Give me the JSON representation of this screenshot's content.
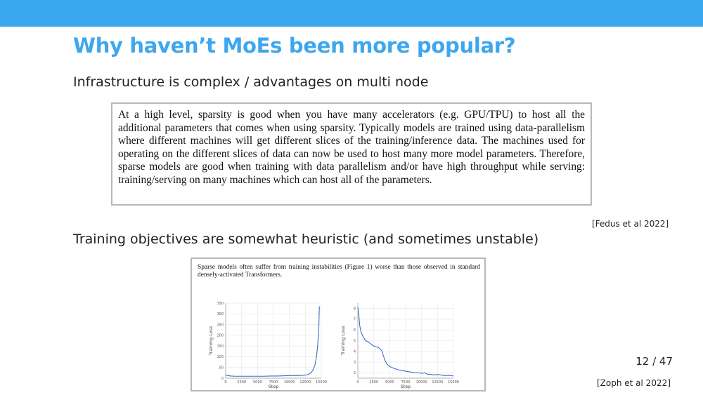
{
  "slide": {
    "title": "Why haven’t MoEs been more popular?",
    "section1_heading": "Infrastructure is complex / advantages on multi node",
    "quote1": "At a high level, sparsity is good when you have many accelerators (e.g.  GPU/TPU) to host all the additional parameters that comes when using sparsity. Typically models are trained using data-parallelism where different machines will get different slices of the training/inference data.  The machines used for operating on the different slices of data can now be used to host many more model parameters.  Therefore, sparse models are good when training with data parallelism and/or have high throughput while serving: training/serving on many machines which can host all of the parameters.",
    "citation1": "[Fedus et al 2022]",
    "section2_heading": "Training objectives are somewhat heuristic (and sometimes unstable)",
    "figure_caption": "Sparse models often suffer from training instabilities (Figure 1) worse than those observed in standard densely-activated Transformers.",
    "citation2": "[Zoph et al 2022]",
    "page_number": "12 / 47"
  },
  "colors": {
    "header_bar": "#39a8ef",
    "title": "#3ea6ee",
    "line": "#3b6fc4"
  },
  "chart_data": [
    {
      "type": "line",
      "xlabel": "Step",
      "ylabel": "Training Loss",
      "xlim": [
        0,
        15000
      ],
      "ylim": [
        0,
        350
      ],
      "xticks": [
        0,
        2500,
        5000,
        7500,
        10000,
        12500,
        15000
      ],
      "yticks": [
        0,
        50,
        100,
        150,
        200,
        250,
        300,
        350
      ],
      "grid": true,
      "x": [
        0,
        300,
        800,
        1500,
        2500,
        4000,
        5000,
        6000,
        7000,
        8000,
        9000,
        10000,
        11000,
        12000,
        12500,
        13000,
        13400,
        13700,
        14000,
        14200,
        14400,
        14600,
        14700
      ],
      "y": [
        16,
        12,
        10,
        9,
        9,
        9,
        9,
        9,
        10,
        10,
        11,
        12,
        12,
        13,
        14,
        18,
        25,
        38,
        60,
        90,
        140,
        220,
        335
      ]
    },
    {
      "type": "line",
      "xlabel": "Step",
      "ylabel": "Training Loss",
      "xlim": [
        0,
        15000
      ],
      "ylim": [
        1.5,
        8.5
      ],
      "xticks": [
        0,
        2500,
        5000,
        7500,
        10000,
        12500,
        15000
      ],
      "yticks": [
        2,
        3,
        4,
        5,
        6,
        7,
        8
      ],
      "grid": true,
      "x": [
        0,
        150,
        300,
        500,
        800,
        1200,
        1600,
        2000,
        2500,
        3000,
        3400,
        3800,
        4000,
        4300,
        4600,
        5000,
        5500,
        6000,
        6500,
        7000,
        7500,
        8000,
        8500,
        9000,
        9500,
        10000,
        10500,
        11000,
        11500,
        12000,
        12500,
        13000,
        13500,
        14000,
        14500,
        15000
      ],
      "y": [
        8.1,
        7.4,
        6.4,
        5.8,
        5.4,
        5.0,
        4.9,
        4.7,
        4.5,
        4.4,
        4.3,
        4.0,
        3.6,
        3.1,
        2.8,
        2.6,
        2.45,
        2.35,
        2.25,
        2.2,
        2.15,
        2.1,
        2.05,
        2.0,
        2.0,
        1.95,
        2.0,
        1.85,
        1.85,
        1.8,
        1.85,
        1.8,
        1.75,
        1.75,
        1.75,
        1.7
      ]
    }
  ]
}
